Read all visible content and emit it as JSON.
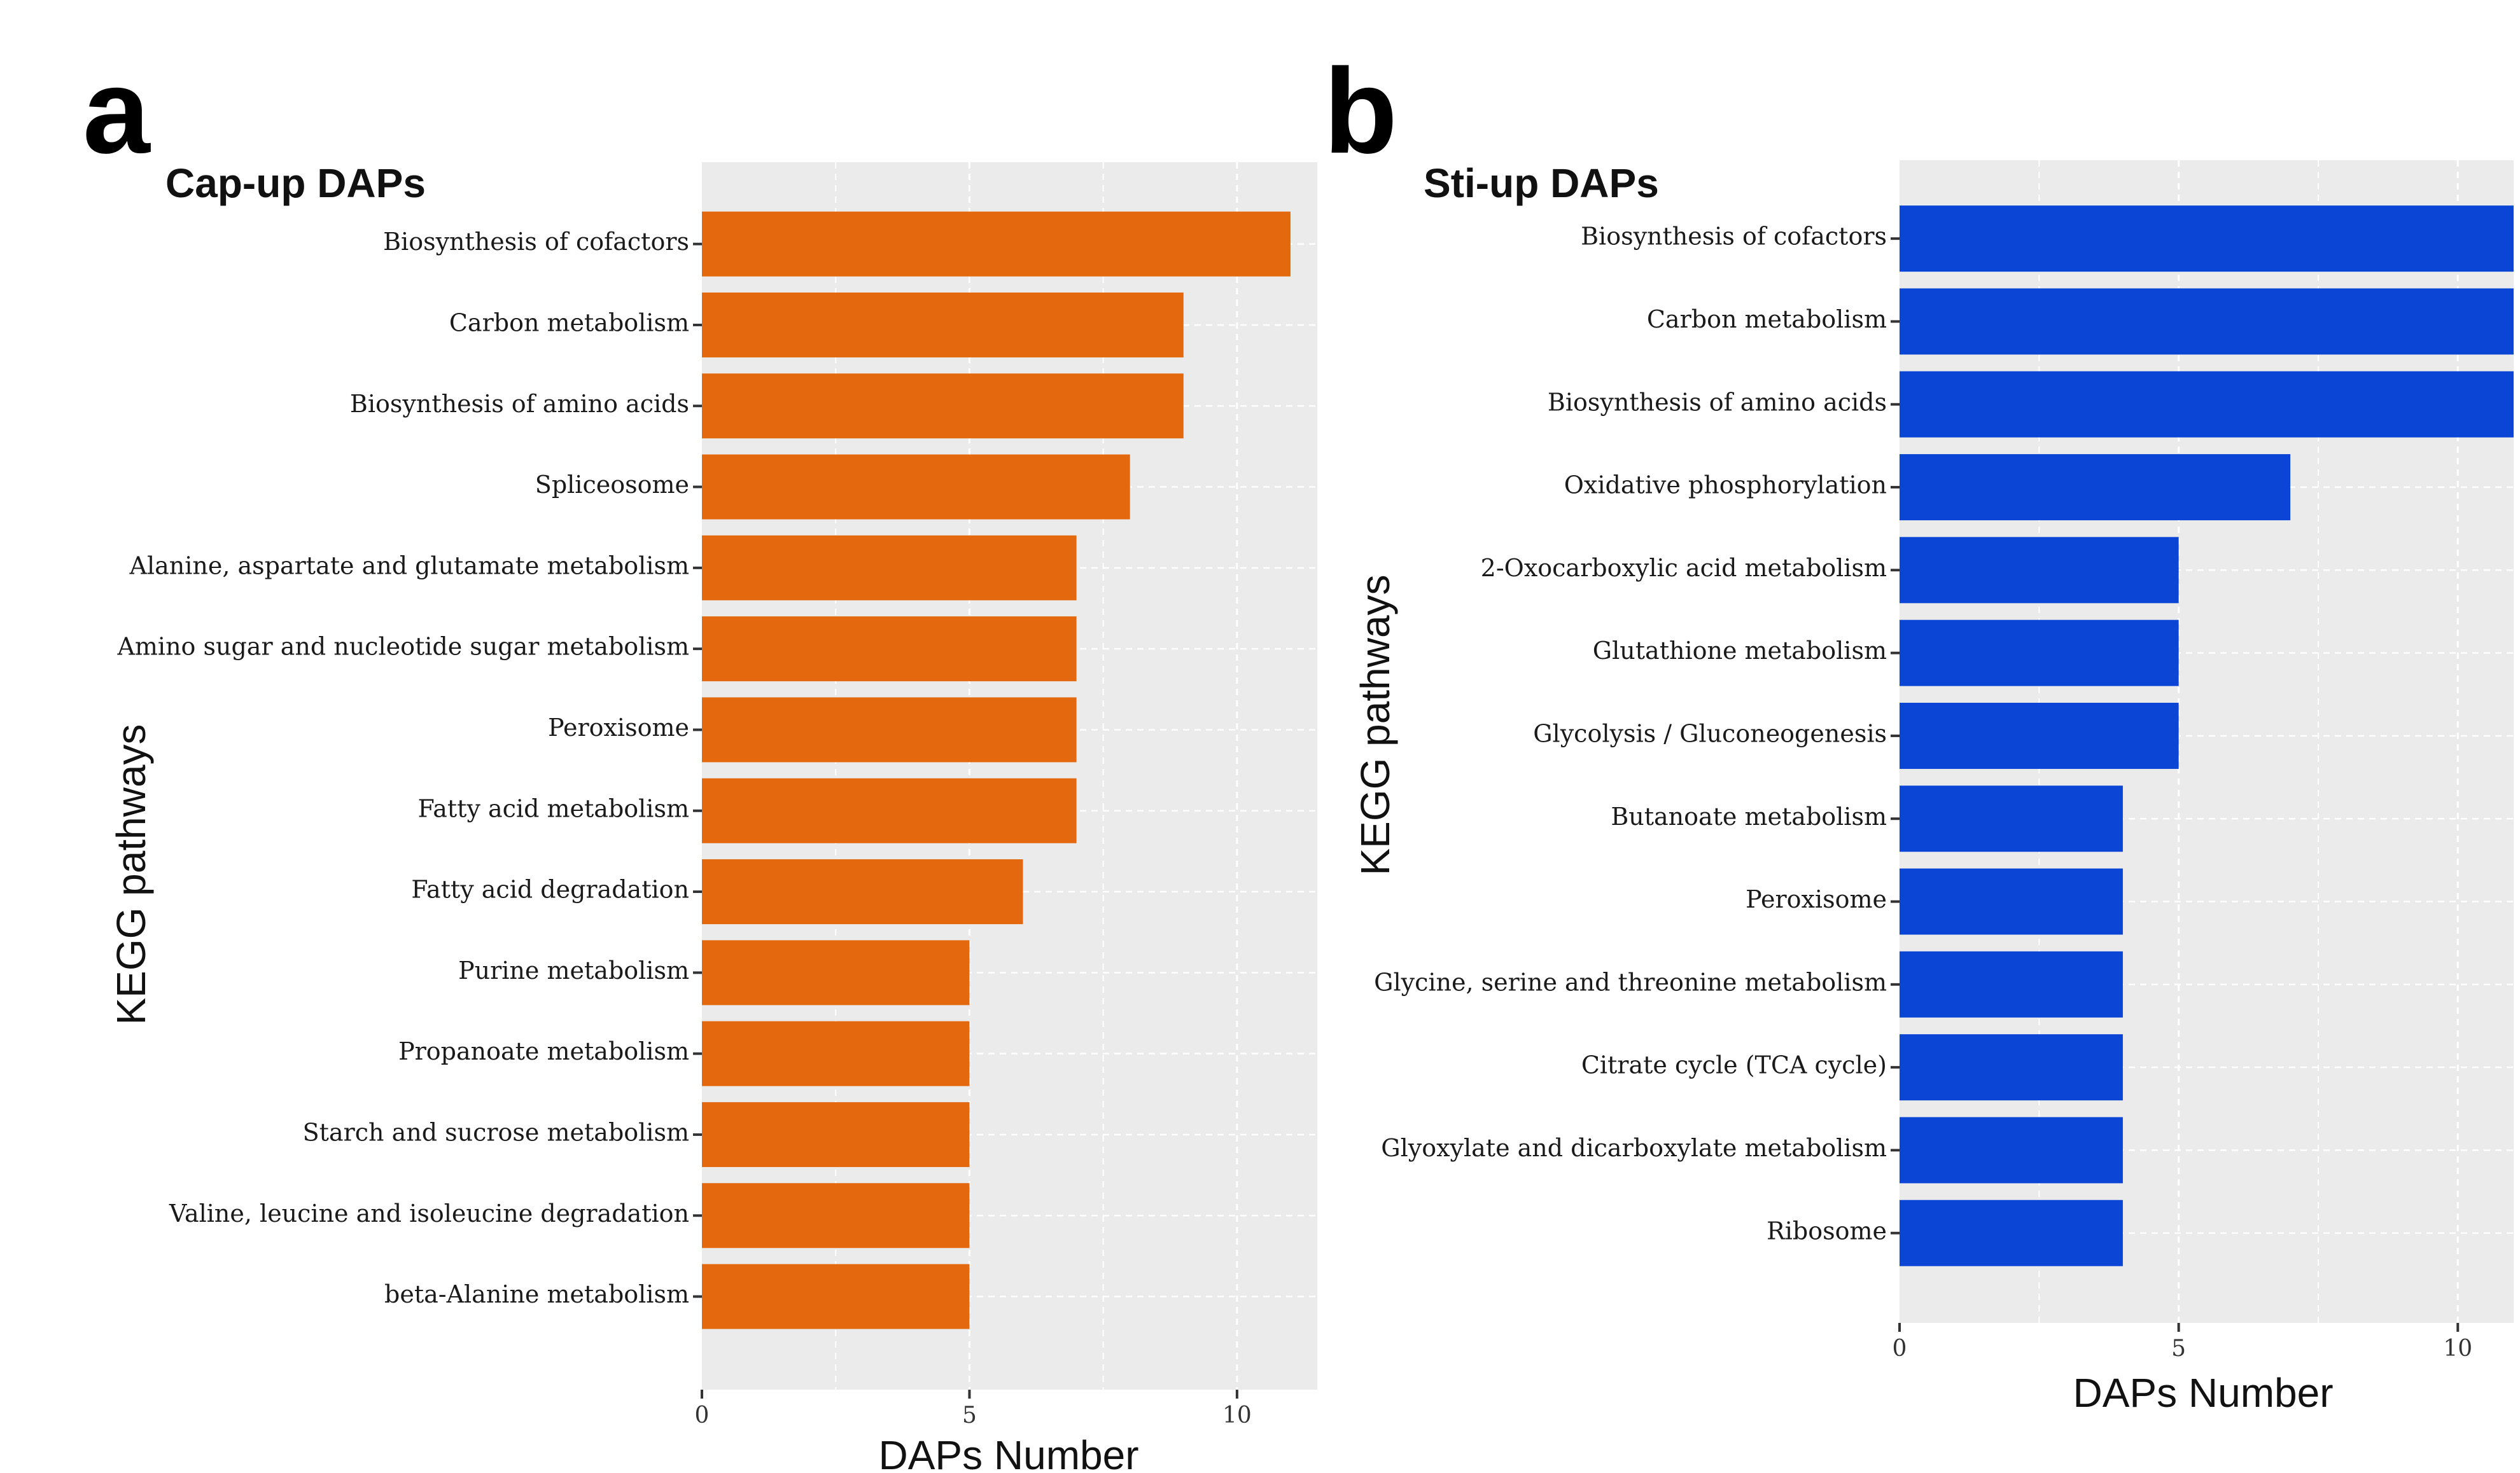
{
  "chart_data": [
    {
      "panel_letter": "a",
      "type": "bar",
      "orientation": "horizontal",
      "title": "Cap-up DAPs",
      "xlabel": "DAPs Number",
      "ylabel": "KEGG pathways",
      "xlim": [
        0,
        11.5
      ],
      "xticks": [
        0,
        5,
        10
      ],
      "bar_color": "#E3680E",
      "panel_background": "#EBEBEB",
      "grid_color": "#FFFFFF",
      "grid": true,
      "categories": [
        "Biosynthesis of cofactors",
        "Carbon metabolism",
        "Biosynthesis of amino acids",
        "Spliceosome",
        "Alanine, aspartate and glutamate metabolism",
        "Amino sugar and nucleotide sugar metabolism",
        "Peroxisome",
        "Fatty acid metabolism",
        "Fatty acid degradation",
        "Purine metabolism",
        "Propanoate metabolism",
        "Starch and sucrose metabolism",
        "Valine, leucine and isoleucine degradation",
        "beta-Alanine metabolism"
      ],
      "values": [
        11,
        9,
        9,
        8,
        7,
        7,
        7,
        7,
        6,
        5,
        5,
        5,
        5,
        5
      ]
    },
    {
      "panel_letter": "b",
      "type": "bar",
      "orientation": "horizontal",
      "title": "Sti-up DAPs",
      "xlabel": "DAPs Number",
      "ylabel": "KEGG pathways",
      "xlim": [
        0,
        11
      ],
      "xticks": [
        0,
        5,
        10
      ],
      "bar_color": "#0B45D6",
      "panel_background": "#EBEBEB",
      "grid_color": "#FFFFFF",
      "grid": true,
      "categories": [
        "Biosynthesis of cofactors",
        "Carbon metabolism",
        "Biosynthesis of amino acids",
        "Oxidative phosphorylation",
        "2-Oxocarboxylic acid metabolism",
        "Glutathione metabolism",
        "Glycolysis / Gluconeogenesis",
        "Butanoate metabolism",
        "Peroxisome",
        "Glycine, serine and threonine metabolism",
        "Citrate cycle (TCA cycle)",
        "Glyoxylate and dicarboxylate metabolism",
        "Ribosome"
      ],
      "values": [
        11,
        11,
        11,
        7,
        5,
        5,
        5,
        4,
        4,
        4,
        4,
        4,
        4
      ]
    }
  ]
}
